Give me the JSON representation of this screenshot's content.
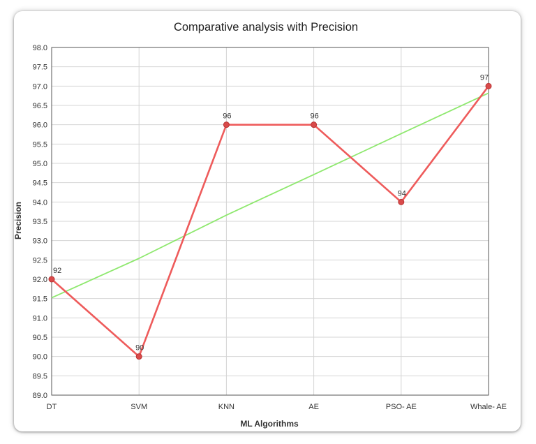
{
  "chart_data": {
    "type": "line",
    "title": "Comparative analysis with Precision",
    "xlabel": "ML Algorithms",
    "ylabel": "Precision",
    "categories": [
      "DT",
      "SVM",
      "KNN",
      "AE",
      "PSO- AE",
      "Whale- AE"
    ],
    "series": [
      {
        "values": [
          92,
          90,
          96,
          96,
          94,
          97
        ],
        "data_labels": [
          "92",
          "90",
          "96",
          "96",
          "94",
          "97"
        ],
        "color": "#ee5b5b",
        "marker": "circle"
      },
      {
        "values": [
          91.52,
          92.54,
          93.66,
          94.71,
          95.77,
          96.82
        ],
        "color": "#8ee86e",
        "marker": "none"
      }
    ],
    "ylim": [
      89.0,
      98.0
    ],
    "yticks": [
      "89.0",
      "89.5",
      "90.0",
      "90.5",
      "91.0",
      "91.5",
      "92.0",
      "92.5",
      "93.0",
      "93.5",
      "94.0",
      "94.5",
      "95.0",
      "95.5",
      "96.0",
      "96.5",
      "97.0",
      "97.5",
      "98.0"
    ],
    "grid": true,
    "legend": "none"
  }
}
